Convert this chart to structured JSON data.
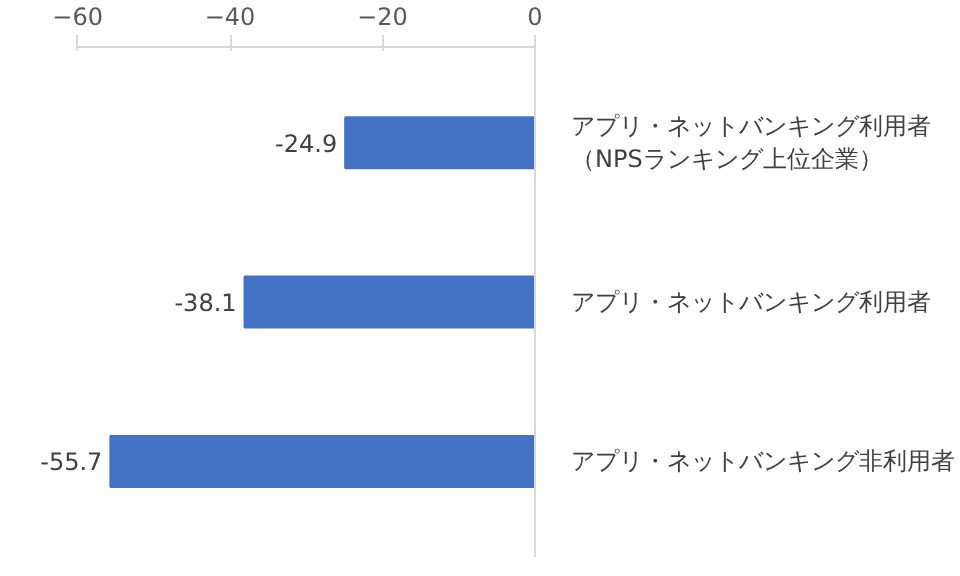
{
  "chart_data": {
    "type": "bar",
    "orientation": "horizontal",
    "categories": [
      "アプリ・ネットバンキング利用者（NPSランキング上位企業）",
      "アプリ・ネットバンキング利用者",
      "アプリ・ネットバンキング非利用者"
    ],
    "values": [
      -24.9,
      -38.1,
      -55.7
    ],
    "color": "#4472c4",
    "xlim": [
      -60,
      0
    ],
    "xticks": [
      -60,
      -40,
      -20,
      0
    ],
    "grid": false,
    "data_labels": true
  }
}
